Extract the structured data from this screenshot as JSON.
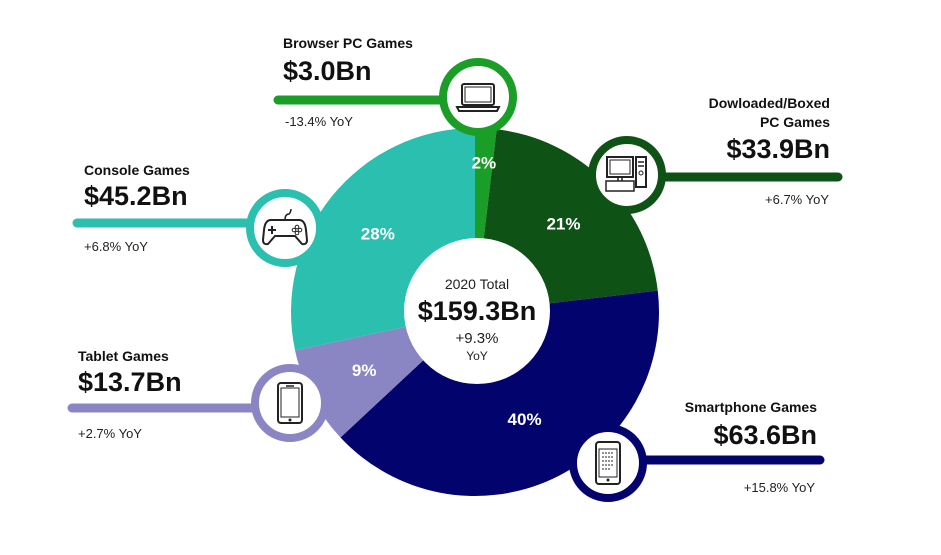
{
  "chart_data": {
    "type": "pie",
    "variant": "donut",
    "center": {
      "label": "2020 Total",
      "value": "$159.3Bn",
      "change": "+9.3%",
      "change_unit": "YoY"
    },
    "segments": [
      {
        "name": "Browser PC Games",
        "name_lines": [
          "Browser PC Games"
        ],
        "value": 3.0,
        "value_label": "$3.0Bn",
        "percent_label": "2%",
        "yoy": "-13.4% YoY",
        "color": "#1a9e27",
        "icon": "laptop-icon"
      },
      {
        "name": "Dowloaded/Boxed PC Games",
        "name_lines": [
          "Dowloaded/Boxed",
          "PC Games"
        ],
        "value": 33.9,
        "value_label": "$33.9Bn",
        "percent_label": "21%",
        "yoy": "+6.7% YoY",
        "color": "#0e5216",
        "icon": "desktop-computer-icon"
      },
      {
        "name": "Smartphone Games",
        "name_lines": [
          "Smartphone Games"
        ],
        "value": 63.6,
        "value_label": "$63.6Bn",
        "percent_label": "40%",
        "yoy": "+15.8% YoY",
        "color": "#03036e",
        "icon": "smartphone-icon"
      },
      {
        "name": "Tablet Games",
        "name_lines": [
          "Tablet Games"
        ],
        "value": 13.7,
        "value_label": "$13.7Bn",
        "percent_label": "9%",
        "yoy": "+2.7% YoY",
        "color": "#8a85c3",
        "icon": "tablet-icon"
      },
      {
        "name": "Console Games",
        "name_lines": [
          "Console Games"
        ],
        "value": 45.2,
        "value_label": "$45.2Bn",
        "percent_label": "28%",
        "yoy": "+6.8% YoY",
        "color": "#2bbfb0",
        "icon": "gamepad-icon"
      }
    ]
  }
}
